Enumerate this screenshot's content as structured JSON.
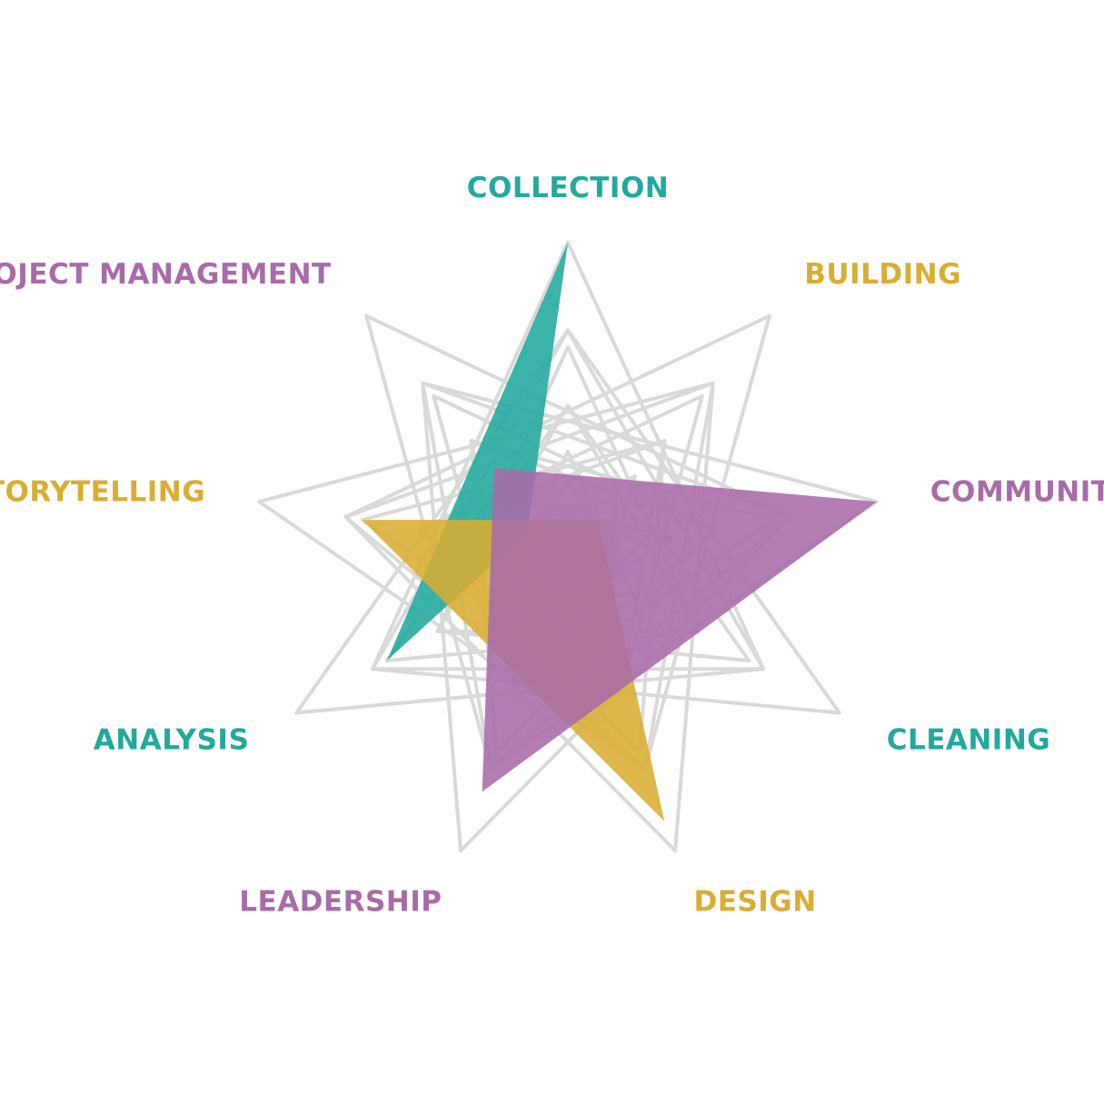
{
  "chart_data": {
    "type": "radar",
    "axes": [
      {
        "label": "COLLECTION",
        "color": "#21a99c"
      },
      {
        "label": "BUILDING",
        "color": "#d9ad32"
      },
      {
        "label": "COMMUNITY",
        "color": "#a86ba8"
      },
      {
        "label": "CLEANING",
        "color": "#21a99c"
      },
      {
        "label": "DESIGN",
        "color": "#d9ad32"
      },
      {
        "label": "LEADERSHIP",
        "color": "#a86ba8"
      },
      {
        "label": "ANALYSIS",
        "color": "#21a99c"
      },
      {
        "label": "STORYTELLING",
        "color": "#d9ad32"
      },
      {
        "label": "PROJECT MANAGEMENT",
        "color": "#a86ba8"
      }
    ],
    "levels": 3,
    "max": 3,
    "grid": true,
    "series": [
      {
        "color": "#21a99c",
        "values": [
          3.0,
          0,
          0,
          0,
          0,
          0,
          2.0,
          0,
          0
        ]
      },
      {
        "color": "#d9ad32",
        "values": [
          0,
          0,
          0,
          0,
          2.7,
          0,
          0,
          2.0,
          0
        ]
      },
      {
        "color": "#a86ba8",
        "values": [
          0,
          0,
          3.0,
          0,
          0,
          2.4,
          0,
          0,
          1.1
        ]
      }
    ]
  }
}
